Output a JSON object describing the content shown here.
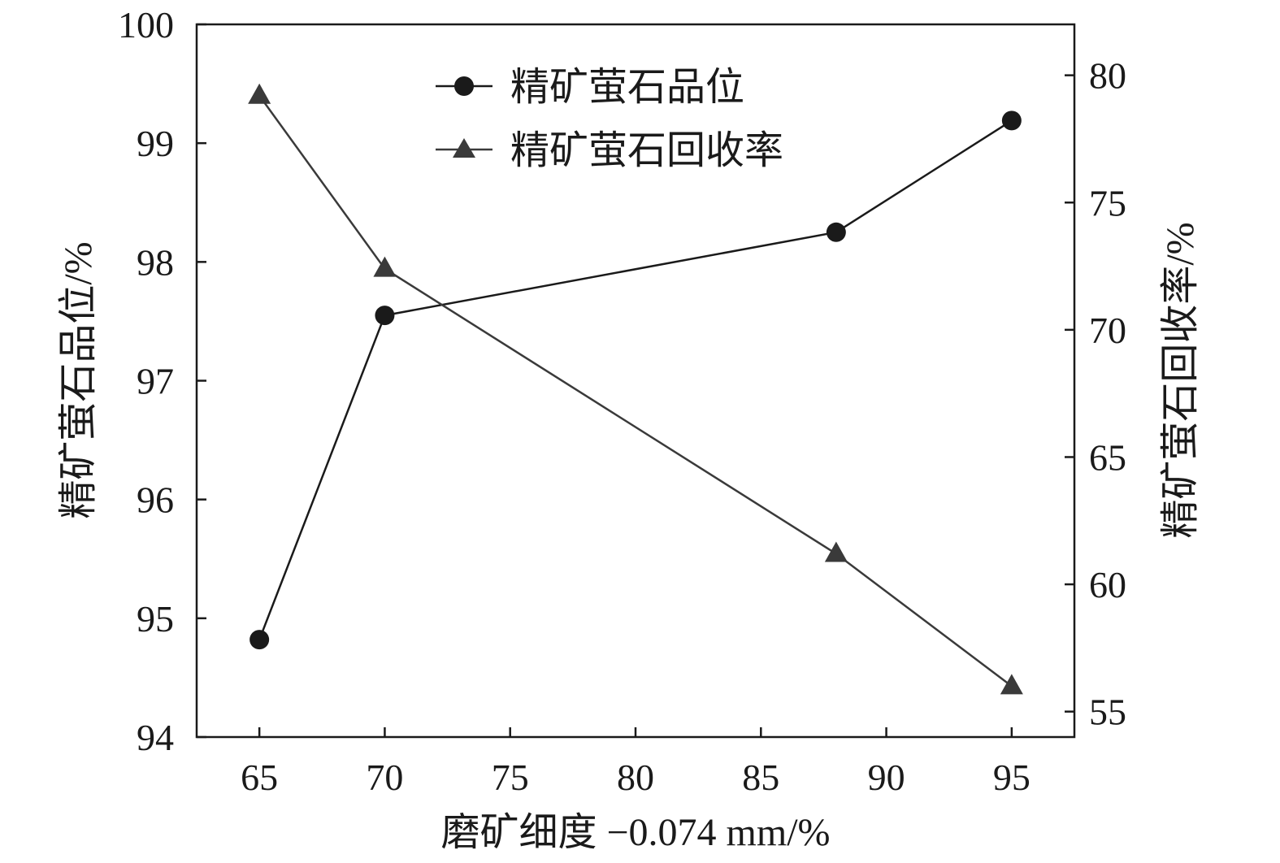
{
  "chart_data": {
    "type": "line",
    "xlabel": "磨矿细度 −0.074 mm/%",
    "ylabel_left": "精矿萤石品位/%",
    "ylabel_right": "精矿萤石回收率/%",
    "x_ticks": [
      65,
      70,
      75,
      80,
      85,
      90,
      95
    ],
    "y_left_ticks": [
      94,
      95,
      96,
      97,
      98,
      99,
      100
    ],
    "y_right_ticks": [
      55,
      60,
      65,
      70,
      75,
      80
    ],
    "xlim": [
      62.5,
      97.5
    ],
    "ylim_left": [
      94,
      100
    ],
    "ylim_right": [
      54,
      82
    ],
    "grid": false,
    "legend_position": "top-center",
    "series": [
      {
        "name": "精矿萤石品位",
        "axis": "left",
        "marker": "circle",
        "color": "#1a1a1a",
        "x": [
          65,
          70,
          88,
          95
        ],
        "y": [
          94.82,
          97.55,
          98.25,
          99.19
        ]
      },
      {
        "name": "精矿萤石回收率",
        "axis": "right",
        "marker": "triangle",
        "color": "#3a3a3a",
        "x": [
          65,
          70,
          88,
          95
        ],
        "y": [
          79.2,
          72.4,
          61.2,
          56.0
        ]
      }
    ]
  }
}
